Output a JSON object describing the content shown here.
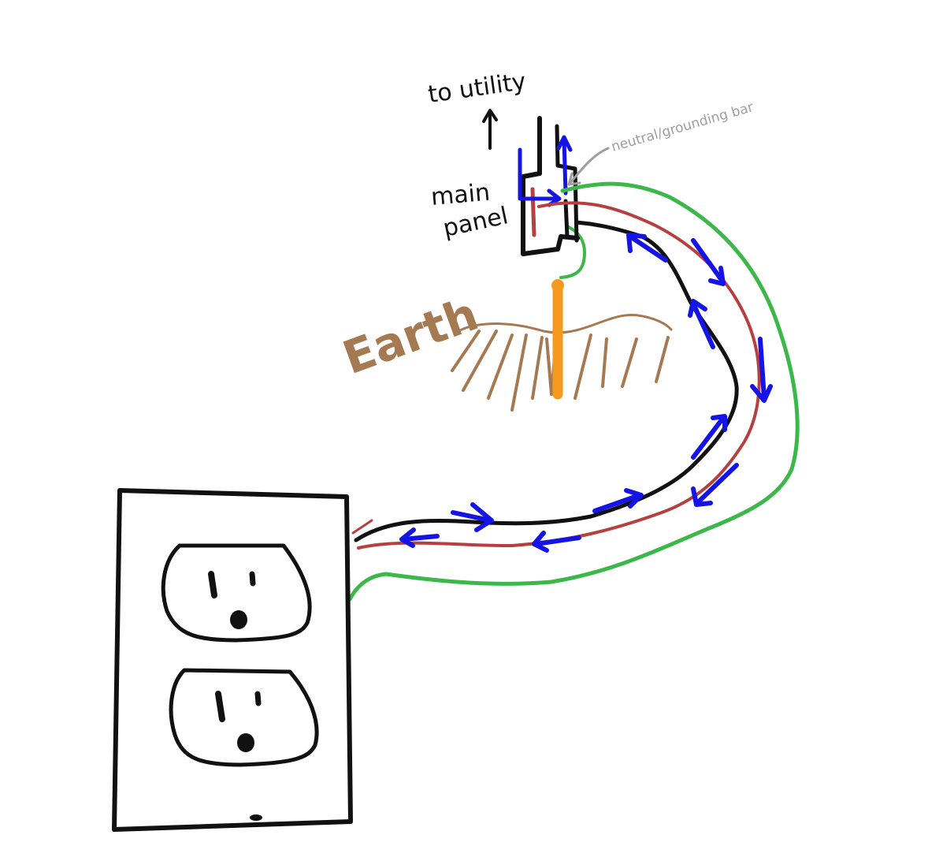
{
  "labels": {
    "to_utility": "to utility",
    "main_panel_line1": "main",
    "main_panel_line2": "panel",
    "neutral_grounding_bar": "neutral/grounding bar",
    "earth": "Earth"
  },
  "colors": {
    "hot_wire": "#111111",
    "neutral_wire": "#b5403f",
    "ground_wire": "#3cb84a",
    "current_arrows": "#1414e6",
    "earth": "#a57a52",
    "ground_rod": "#f59a1e",
    "annotation_gray": "#9e9e9e",
    "outline": "#111111"
  },
  "icons": {
    "utility_arrow": "up-arrow-icon",
    "outlet_receptacle": "duplex-outlet-icon",
    "ground_rod": "ground-rod-icon"
  }
}
